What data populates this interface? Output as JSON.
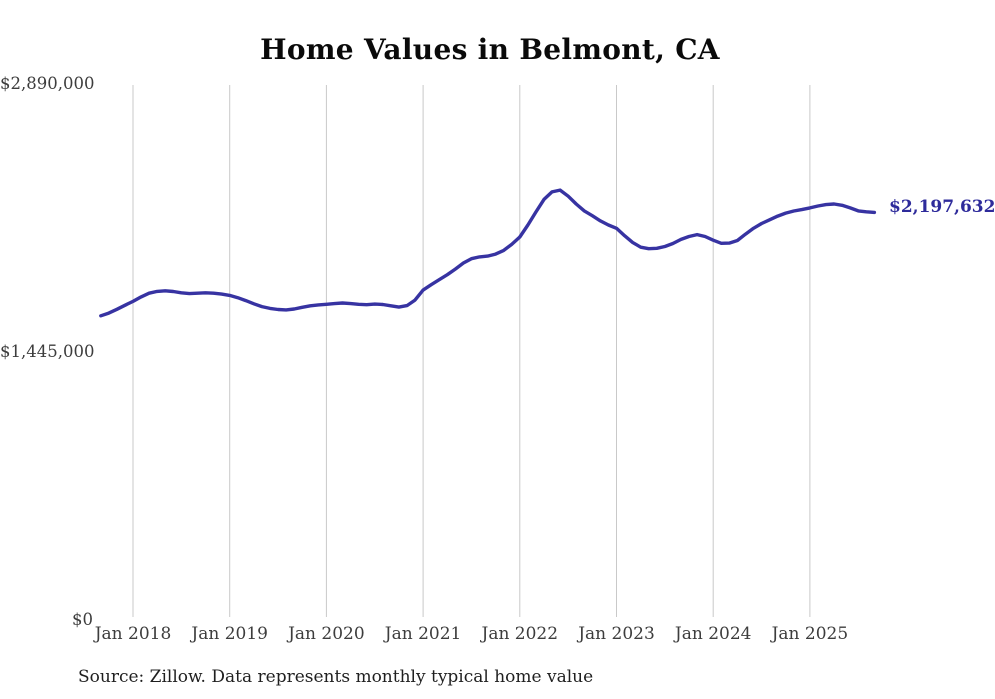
{
  "title": "Home Values in Belmont, CA",
  "source_note": "Source: Zillow. Data represents monthly typical home value",
  "end_label": "$2,197,632",
  "colors": {
    "line": "#3733a2",
    "end_label": "#2e2b9b",
    "grid": "#c9c9c9",
    "axis_text": "#3d3d3d",
    "title_text": "#0a0a0a",
    "source_text": "#1f1f1f",
    "background": "#ffffff"
  },
  "chart_data": {
    "type": "line",
    "title": "Home Values in Belmont, CA",
    "xlabel": "",
    "ylabel": "",
    "ylim": [
      0,
      2890000
    ],
    "y_ticks": [
      0,
      1445000,
      2890000
    ],
    "y_tick_labels": [
      "$0",
      "$1,445,000",
      "$2,890,000"
    ],
    "x_tick_labels": [
      "Jan 2018",
      "Jan 2019",
      "Jan 2020",
      "Jan 2021",
      "Jan 2022",
      "Jan 2023",
      "Jan 2024",
      "Jan 2025"
    ],
    "grid": "vertical-only",
    "legend": "none",
    "end_point_label": "$2,197,632",
    "end_point_value": 2197632,
    "series": [
      {
        "name": "Typical home value",
        "months": [
          "2017-09",
          "2017-10",
          "2017-11",
          "2017-12",
          "2018-01",
          "2018-02",
          "2018-03",
          "2018-04",
          "2018-05",
          "2018-06",
          "2018-07",
          "2018-08",
          "2018-09",
          "2018-10",
          "2018-11",
          "2018-12",
          "2019-01",
          "2019-02",
          "2019-03",
          "2019-04",
          "2019-05",
          "2019-06",
          "2019-07",
          "2019-08",
          "2019-09",
          "2019-10",
          "2019-11",
          "2019-12",
          "2020-01",
          "2020-02",
          "2020-03",
          "2020-04",
          "2020-05",
          "2020-06",
          "2020-07",
          "2020-08",
          "2020-09",
          "2020-10",
          "2020-11",
          "2020-12",
          "2021-01",
          "2021-02",
          "2021-03",
          "2021-04",
          "2021-05",
          "2021-06",
          "2021-07",
          "2021-08",
          "2021-09",
          "2021-10",
          "2021-11",
          "2021-12",
          "2022-01",
          "2022-02",
          "2022-03",
          "2022-04",
          "2022-05",
          "2022-06",
          "2022-07",
          "2022-08",
          "2022-09",
          "2022-10",
          "2022-11",
          "2022-12",
          "2023-01",
          "2023-02",
          "2023-03",
          "2023-04",
          "2023-05",
          "2023-06",
          "2023-07",
          "2023-08",
          "2023-09",
          "2023-10",
          "2023-11",
          "2023-12",
          "2024-01",
          "2024-02",
          "2024-03",
          "2024-04",
          "2024-05",
          "2024-06",
          "2024-07",
          "2024-08",
          "2024-09",
          "2024-10",
          "2024-11",
          "2024-12",
          "2025-01",
          "2025-02",
          "2025-03",
          "2025-04",
          "2025-05",
          "2025-06",
          "2025-07",
          "2025-08",
          "2025-09"
        ],
        "values": [
          1640000,
          1655000,
          1675000,
          1697000,
          1718000,
          1742000,
          1762000,
          1772000,
          1775000,
          1771000,
          1764000,
          1760000,
          1762000,
          1764000,
          1762000,
          1757000,
          1750000,
          1738000,
          1722000,
          1705000,
          1690000,
          1680000,
          1674000,
          1672000,
          1677000,
          1686000,
          1694000,
          1699000,
          1702000,
          1706000,
          1709000,
          1706000,
          1702000,
          1700000,
          1703000,
          1701000,
          1694000,
          1687000,
          1695000,
          1725000,
          1779000,
          1808000,
          1835000,
          1862000,
          1892000,
          1925000,
          1948000,
          1958000,
          1962000,
          1973000,
          1993000,
          2025000,
          2065000,
          2130000,
          2200000,
          2268000,
          2308000,
          2318000,
          2285000,
          2243000,
          2206000,
          2180000,
          2152000,
          2130000,
          2112000,
          2072000,
          2036000,
          2010000,
          2002000,
          2004000,
          2014000,
          2030000,
          2052000,
          2068000,
          2078000,
          2068000,
          2048000,
          2031000,
          2032000,
          2046000,
          2080000,
          2112000,
          2138000,
          2158000,
          2178000,
          2194000,
          2205000,
          2213000,
          2222000,
          2232000,
          2240000,
          2243000,
          2236000,
          2222000,
          2206000,
          2201000,
          2197632
        ]
      }
    ]
  }
}
